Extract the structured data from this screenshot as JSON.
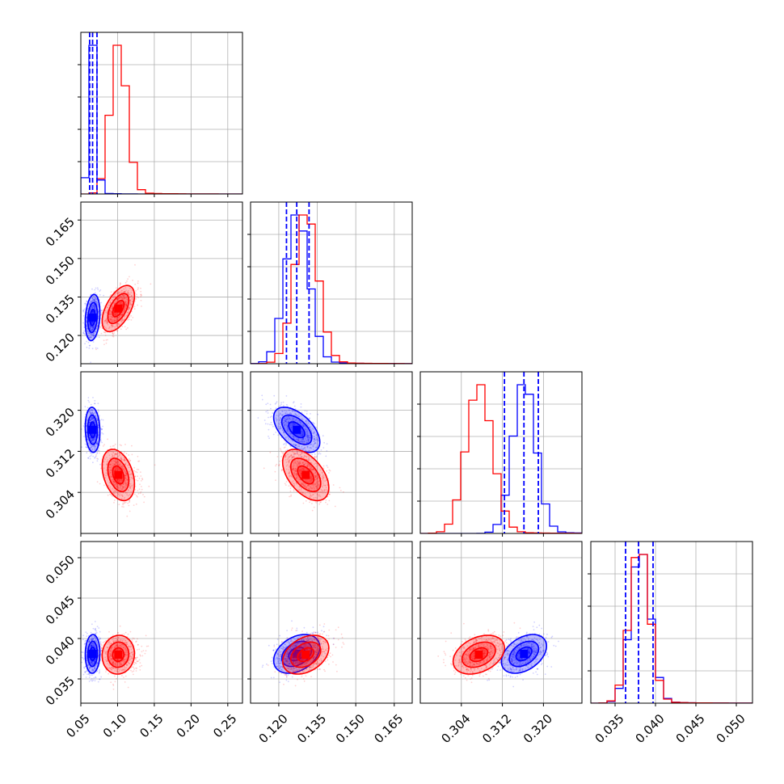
{
  "chart_data": {
    "type": "corner",
    "grid": true,
    "colors": {
      "blue": "#0000ff",
      "red": "#ff0000",
      "grid": "#b0b0b0"
    },
    "params": [
      {
        "range": [
          0.05,
          0.27
        ],
        "ticks": [
          0.05,
          0.1,
          0.15,
          0.2,
          0.25
        ],
        "tick_labels": [
          "0.05",
          "0.10",
          "0.15",
          "0.20",
          "0.25"
        ]
      },
      {
        "range": [
          0.109,
          0.172
        ],
        "ticks": [
          0.12,
          0.135,
          0.15,
          0.165
        ],
        "tick_labels": [
          "0.120",
          "0.135",
          "0.150",
          "0.165"
        ]
      },
      {
        "range": [
          0.296,
          0.3275
        ],
        "ticks": [
          0.304,
          0.312,
          0.32
        ],
        "tick_labels": [
          "0.304",
          "0.312",
          "0.320"
        ]
      },
      {
        "range": [
          0.032,
          0.052
        ],
        "ticks": [
          0.035,
          0.04,
          0.045,
          0.05
        ],
        "tick_labels": [
          "0.035",
          "0.040",
          "0.045",
          "0.050"
        ]
      }
    ],
    "series": [
      {
        "color": "blue",
        "means": [
          0.066,
          0.127,
          0.3162,
          0.0381
        ],
        "sigmas": [
          0.005,
          0.0045,
          0.0022,
          0.0012
        ],
        "quantiles": [
          [
            0.062,
            0.066,
            0.072
          ],
          [
            0.123,
            0.127,
            0.1318
          ],
          [
            0.3124,
            0.3162,
            0.319
          ],
          [
            0.0363,
            0.0379,
            0.0397
          ]
        ],
        "correlations": [
          [
            0,
            1,
            0.2
          ],
          [
            0,
            2,
            -0.1
          ],
          [
            0,
            3,
            0.05
          ],
          [
            1,
            2,
            -0.55
          ],
          [
            1,
            3,
            0.35
          ],
          [
            2,
            3,
            0.4
          ]
        ]
      },
      {
        "color": "red",
        "means": [
          0.101,
          0.1305,
          0.3074,
          0.038
        ],
        "sigmas": [
          0.011,
          0.0045,
          0.0025,
          0.0012
        ],
        "quantiles": [
          [
            0.09,
            0.101,
            0.114
          ],
          [
            0.126,
            0.1305,
            0.135
          ],
          [
            0.3048,
            0.3074,
            0.31
          ],
          [
            0.0365,
            0.038,
            0.0395
          ]
        ],
        "correlations": [
          [
            0,
            1,
            0.55
          ],
          [
            0,
            2,
            -0.35
          ],
          [
            0,
            3,
            0.05
          ],
          [
            1,
            2,
            -0.5
          ],
          [
            1,
            3,
            0.35
          ],
          [
            2,
            3,
            0.35
          ]
        ]
      }
    ]
  }
}
